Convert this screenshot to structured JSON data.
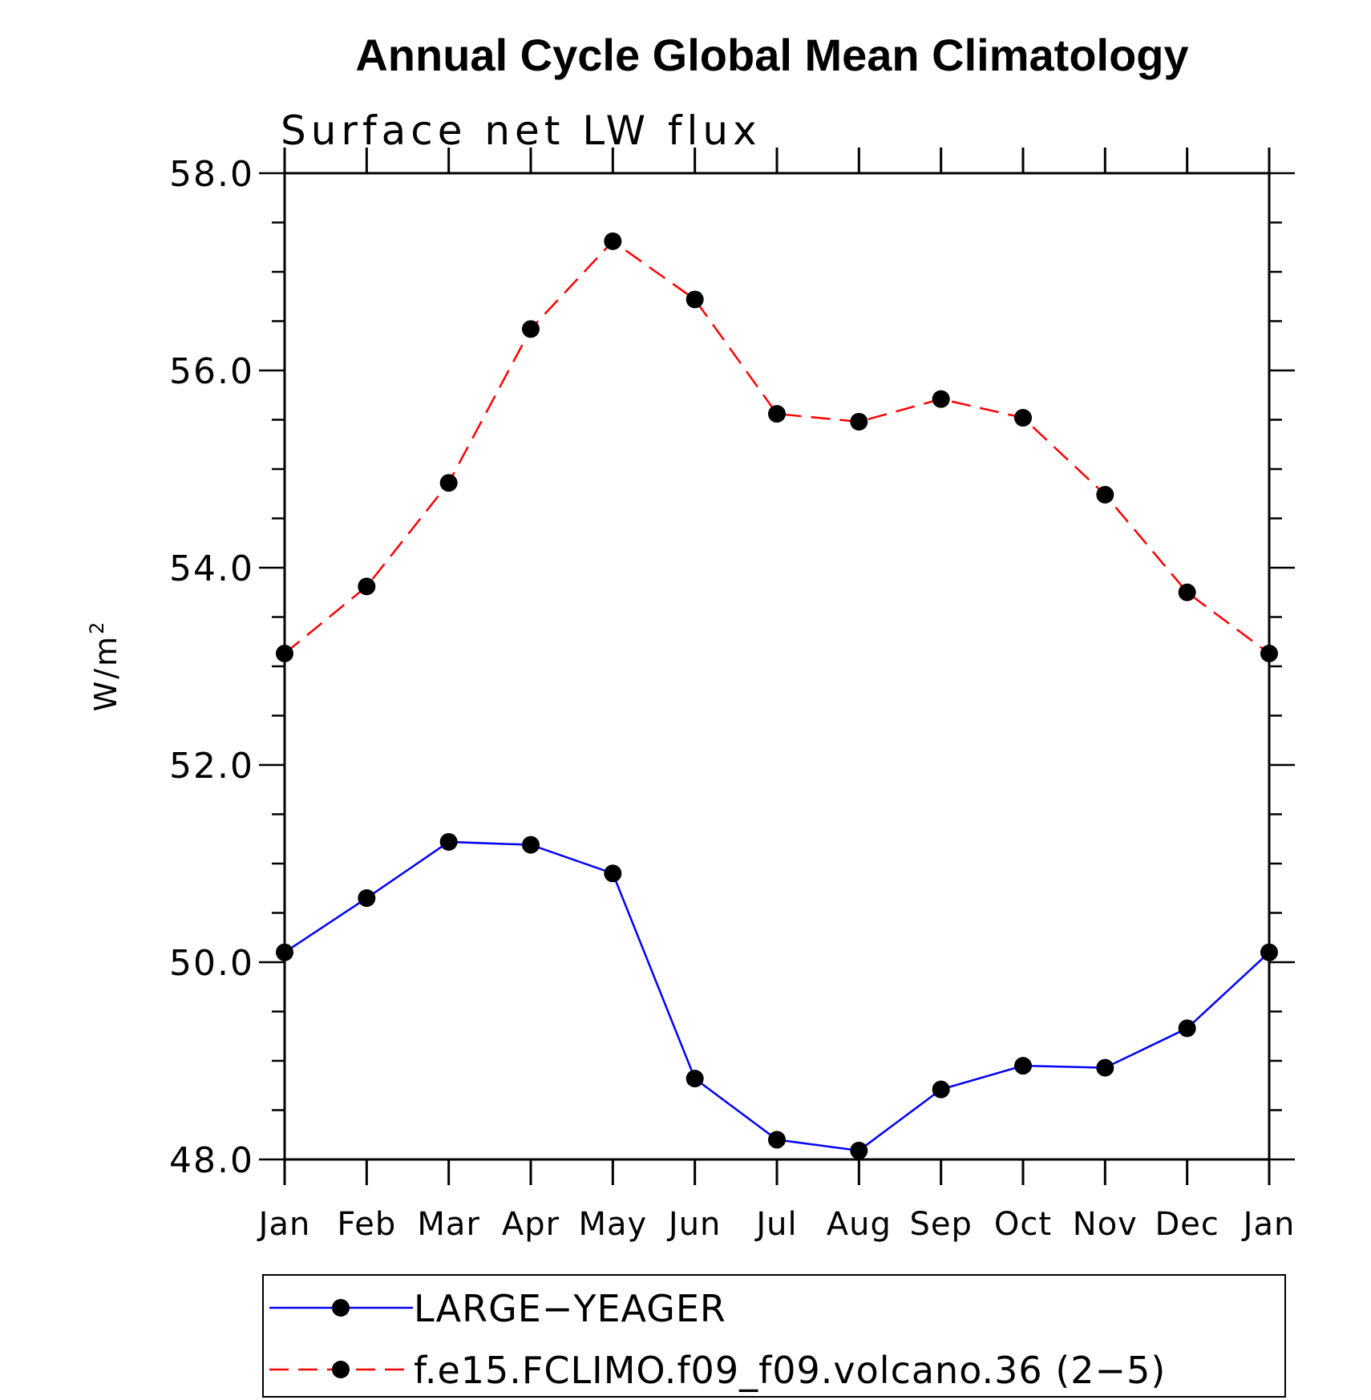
{
  "chart_data": {
    "type": "line",
    "title": "Annual Cycle Global Mean Climatology",
    "subtitle": "Surface net LW flux",
    "ylabel_base": "W/m",
    "ylabel_sup": "2",
    "categories": [
      "Jan",
      "Feb",
      "Mar",
      "Apr",
      "May",
      "Jun",
      "Jul",
      "Aug",
      "Sep",
      "Oct",
      "Nov",
      "Dec",
      "Jan"
    ],
    "ylim": [
      48.0,
      58.0
    ],
    "yticks": [
      "48.0",
      "50.0",
      "52.0",
      "54.0",
      "56.0",
      "58.0"
    ],
    "series": [
      {
        "name": "LARGE−YEAGER",
        "color": "#0000ff",
        "dash": "solid",
        "values": [
          50.1,
          50.65,
          51.22,
          51.19,
          50.9,
          48.82,
          48.2,
          48.09,
          48.71,
          48.95,
          48.93,
          49.33,
          50.1
        ]
      },
      {
        "name": "f.e15.FCLIMO.f09_f09.volcano.36 (2−5)",
        "color": "#ff0000",
        "dash": "dashed",
        "values": [
          53.13,
          53.81,
          54.86,
          56.42,
          57.31,
          56.72,
          55.56,
          55.48,
          55.71,
          55.52,
          54.74,
          53.75,
          53.13
        ]
      }
    ]
  }
}
